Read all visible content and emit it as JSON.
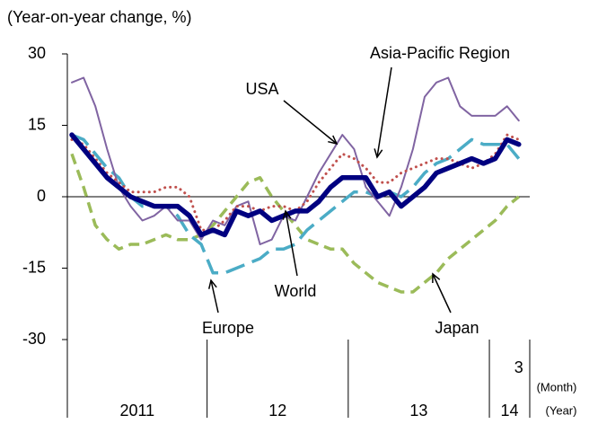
{
  "chart_data": {
    "type": "line",
    "y_axis_label": "(Year-on-year change, %)",
    "categories": [
      null,
      null,
      null,
      null,
      null,
      null,
      null,
      null,
      null,
      null,
      null,
      null,
      null,
      null,
      null,
      null,
      null,
      null,
      null,
      null,
      null,
      null,
      null,
      null,
      null,
      null,
      null,
      null,
      null,
      null,
      null,
      null,
      null,
      null,
      null,
      null,
      null,
      null,
      "3"
    ],
    "month_label": "(Month)",
    "years": [
      "2011",
      "12",
      "13",
      "14"
    ],
    "year_label": "(Year)",
    "ylim": [
      -30,
      30
    ],
    "yticks": [
      -30,
      -15,
      0,
      15,
      30
    ],
    "series": [
      {
        "name": "World",
        "color": "#000080",
        "values": [
          13,
          10,
          7,
          4,
          2,
          0,
          -1,
          -2,
          -2,
          -2,
          -4,
          -8,
          -7,
          -8,
          -3,
          -4,
          -3,
          -5,
          -4,
          -3,
          -3,
          -1,
          2,
          4,
          4,
          4,
          0,
          1,
          -2,
          0,
          2,
          5,
          6,
          7,
          8,
          7,
          8,
          12,
          11
        ]
      },
      {
        "name": "USA",
        "color": "#8064a2",
        "values": [
          24,
          25,
          19,
          10,
          2,
          -2,
          -5,
          -4,
          -2,
          -5,
          -5,
          -9,
          -5,
          -6,
          -2,
          -1,
          -10,
          -9,
          -4,
          -5,
          0,
          5,
          9,
          13,
          10,
          2,
          -1,
          -4,
          2,
          10,
          21,
          24,
          25,
          19,
          17,
          17,
          17,
          19,
          16
        ]
      },
      {
        "name": "Asia-Pacific Region",
        "color": "#c0504d",
        "values": [
          12,
          11,
          8,
          5,
          3,
          1,
          1,
          1,
          2,
          2,
          0,
          -7,
          -7,
          -5,
          -2,
          -2,
          -3,
          -2,
          -2,
          -3,
          -1,
          3,
          6,
          9,
          8,
          6,
          3,
          3,
          5,
          6,
          7,
          8,
          8,
          7,
          6,
          7,
          9,
          13,
          12
        ]
      },
      {
        "name": "Europe",
        "color": "#4bacc6",
        "values": [
          13,
          12,
          9,
          6,
          4,
          0,
          -2,
          -2,
          -2,
          -4,
          -8,
          -10,
          -16,
          -16,
          -15,
          -14,
          -13,
          -11,
          -11,
          -10,
          -7,
          -5,
          -3,
          -1,
          1,
          1,
          0,
          1,
          0,
          2,
          5,
          7,
          8,
          10,
          12,
          11,
          11,
          11,
          8
        ]
      },
      {
        "name": "Japan",
        "color": "#9bbb59",
        "values": [
          9,
          2,
          -6,
          -9,
          -11,
          -10,
          -10,
          -9,
          -8,
          -9,
          -9,
          -8,
          -6,
          -3,
          0,
          3,
          4,
          0,
          -3,
          -6,
          -9,
          -10,
          -11,
          -11,
          -14,
          -16,
          -18,
          -19,
          -20,
          -20,
          -18,
          -16,
          -13,
          -11,
          -9,
          -7,
          -5,
          -2,
          0
        ]
      }
    ]
  }
}
